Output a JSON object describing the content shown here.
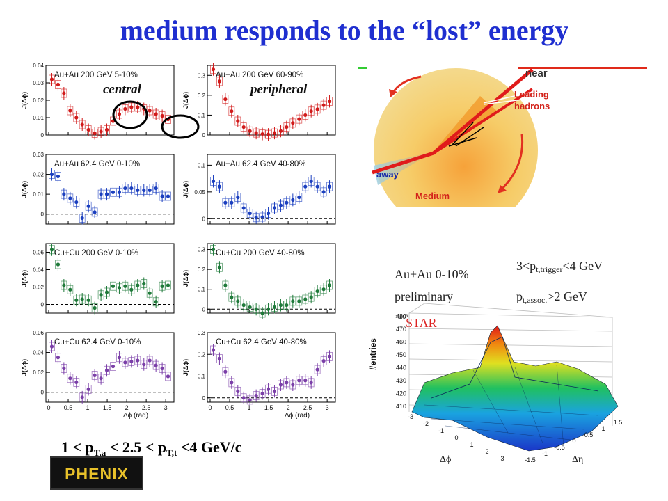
{
  "title": "medium responds to the “lost” energy",
  "central_label": "central",
  "peripheral_label": "peripheral",
  "axis": {
    "ylabel": "J(Δϕ)",
    "xlabel": "Δϕ (rad)",
    "xticks": [
      "0",
      "0.5",
      "1",
      "1.5",
      "2",
      "2.5",
      "3"
    ]
  },
  "chart_data": [
    {
      "type": "scatter",
      "title": "Au+Au 200 GeV 5-10%",
      "color": "#d11a1a",
      "ylim": [
        0,
        0.04
      ],
      "yticks": [
        "0",
        "0.01",
        "0.02",
        "0.03",
        "0.04"
      ],
      "x": [
        0.08,
        0.24,
        0.39,
        0.55,
        0.71,
        0.86,
        1.02,
        1.18,
        1.34,
        1.49,
        1.65,
        1.81,
        1.96,
        2.12,
        2.28,
        2.44,
        2.59,
        2.75,
        2.91,
        3.06
      ],
      "y": [
        0.032,
        0.029,
        0.024,
        0.014,
        0.01,
        0.006,
        0.003,
        0.001,
        0.002,
        0.003,
        0.008,
        0.012,
        0.015,
        0.016,
        0.016,
        0.015,
        0.014,
        0.012,
        0.011,
        0.009
      ]
    },
    {
      "type": "scatter",
      "title": "Au+Au 200 GeV 60-90%",
      "color": "#d11a1a",
      "ylim": [
        0,
        0.35
      ],
      "yticks": [
        "0",
        "0.1",
        "0.2",
        "0.3"
      ],
      "x": [
        0.08,
        0.24,
        0.39,
        0.55,
        0.71,
        0.86,
        1.02,
        1.18,
        1.34,
        1.49,
        1.65,
        1.81,
        1.96,
        2.12,
        2.28,
        2.44,
        2.59,
        2.75,
        2.91,
        3.06
      ],
      "y": [
        0.33,
        0.27,
        0.18,
        0.12,
        0.07,
        0.04,
        0.02,
        0.01,
        0.005,
        0.003,
        0.01,
        0.02,
        0.04,
        0.06,
        0.08,
        0.1,
        0.12,
        0.13,
        0.15,
        0.17
      ]
    },
    {
      "type": "scatter",
      "title": "Au+Au 62.4 GeV 0-10%",
      "color": "#1b3fbf",
      "ylim": [
        -0.005,
        0.03
      ],
      "yticks": [
        "0",
        "0.01",
        "0.02",
        "0.03"
      ],
      "x": [
        0.08,
        0.24,
        0.39,
        0.55,
        0.71,
        0.86,
        1.02,
        1.18,
        1.34,
        1.49,
        1.65,
        1.81,
        1.96,
        2.12,
        2.28,
        2.44,
        2.59,
        2.75,
        2.91,
        3.06
      ],
      "y": [
        0.02,
        0.019,
        0.01,
        0.008,
        0.006,
        -0.002,
        0.004,
        0.001,
        0.01,
        0.01,
        0.011,
        0.011,
        0.013,
        0.013,
        0.012,
        0.012,
        0.012,
        0.013,
        0.009,
        0.009
      ]
    },
    {
      "type": "scatter",
      "title": "Au+Au 62.4 GeV 40-80%",
      "color": "#1b3fbf",
      "ylim": [
        -0.01,
        0.12
      ],
      "yticks": [
        "0",
        "0.05",
        "0.1"
      ],
      "x": [
        0.08,
        0.24,
        0.39,
        0.55,
        0.71,
        0.86,
        1.02,
        1.18,
        1.34,
        1.49,
        1.65,
        1.81,
        1.96,
        2.12,
        2.28,
        2.44,
        2.59,
        2.75,
        2.91,
        3.06
      ],
      "y": [
        0.07,
        0.06,
        0.03,
        0.03,
        0.04,
        0.02,
        0.01,
        0.002,
        0.003,
        0.01,
        0.02,
        0.025,
        0.03,
        0.035,
        0.04,
        0.06,
        0.07,
        0.06,
        0.05,
        0.06
      ]
    },
    {
      "type": "scatter",
      "title": "Cu+Cu 200 GeV 0-10%",
      "color": "#1f7a3a",
      "ylim": [
        -0.01,
        0.07
      ],
      "yticks": [
        "0",
        "0.02",
        "0.04",
        "0.06"
      ],
      "x": [
        0.08,
        0.24,
        0.39,
        0.55,
        0.71,
        0.86,
        1.02,
        1.18,
        1.34,
        1.49,
        1.65,
        1.81,
        1.96,
        2.12,
        2.28,
        2.44,
        2.59,
        2.75,
        2.91,
        3.06
      ],
      "y": [
        0.063,
        0.046,
        0.022,
        0.017,
        0.005,
        0.006,
        0.005,
        -0.004,
        0.011,
        0.014,
        0.021,
        0.019,
        0.021,
        0.017,
        0.022,
        0.024,
        0.013,
        0.003,
        0.021,
        0.022
      ]
    },
    {
      "type": "scatter",
      "title": "Cu+Cu 200 GeV 40-80%",
      "color": "#1f7a3a",
      "ylim": [
        -0.02,
        0.33
      ],
      "yticks": [
        "0",
        "0.1",
        "0.2",
        "0.3"
      ],
      "x": [
        0.08,
        0.24,
        0.39,
        0.55,
        0.71,
        0.86,
        1.02,
        1.18,
        1.34,
        1.49,
        1.65,
        1.81,
        1.96,
        2.12,
        2.28,
        2.44,
        2.59,
        2.75,
        2.91,
        3.06
      ],
      "y": [
        0.3,
        0.21,
        0.12,
        0.06,
        0.04,
        0.02,
        0.01,
        0.0,
        -0.02,
        0.0,
        0.01,
        0.02,
        0.02,
        0.04,
        0.04,
        0.05,
        0.06,
        0.09,
        0.1,
        0.12
      ]
    },
    {
      "type": "scatter",
      "title": "Cu+Cu 62.4 GeV 0-10%",
      "color": "#7b3fa8",
      "ylim": [
        -0.01,
        0.06
      ],
      "yticks": [
        "0",
        "0.02",
        "0.04",
        "0.06"
      ],
      "x": [
        0.08,
        0.24,
        0.39,
        0.55,
        0.71,
        0.86,
        1.02,
        1.18,
        1.34,
        1.49,
        1.65,
        1.81,
        1.96,
        2.12,
        2.28,
        2.44,
        2.59,
        2.75,
        2.91,
        3.06
      ],
      "y": [
        0.046,
        0.035,
        0.024,
        0.014,
        0.01,
        -0.005,
        0.003,
        0.017,
        0.014,
        0.022,
        0.026,
        0.035,
        0.03,
        0.031,
        0.032,
        0.028,
        0.032,
        0.027,
        0.024,
        0.016
      ]
    },
    {
      "type": "scatter",
      "title": "Cu+Cu 62.4 GeV 40-80%",
      "color": "#7b3fa8",
      "ylim": [
        -0.02,
        0.3
      ],
      "yticks": [
        "0",
        "0.1",
        "0.2",
        "0.3"
      ],
      "x": [
        0.08,
        0.24,
        0.39,
        0.55,
        0.71,
        0.86,
        1.02,
        1.18,
        1.34,
        1.49,
        1.65,
        1.81,
        1.96,
        2.12,
        2.28,
        2.44,
        2.59,
        2.75,
        2.91,
        3.06
      ],
      "y": [
        0.22,
        0.18,
        0.12,
        0.07,
        0.03,
        0.0,
        -0.01,
        0.01,
        0.02,
        0.04,
        0.03,
        0.06,
        0.07,
        0.06,
        0.08,
        0.08,
        0.07,
        0.13,
        0.17,
        0.19
      ]
    }
  ],
  "schematic": {
    "near": "near",
    "leading": "Leading",
    "hadrons": "hadrons",
    "away": "away",
    "medium": "Medium"
  },
  "lego": {
    "info_system": "Au+Au 0-10%",
    "info_prelim": "preliminary",
    "info_star": "STAR",
    "cut1_pre": "3<p",
    "cut1_sub": "t,trigger",
    "cut1_post": "<4 GeV",
    "cut2_pre": "p",
    "cut2_sub": "t,assoc.",
    "cut2_post": ">2 GeV",
    "zlabel": "#entries",
    "zexp": "×10³",
    "zticks": [
      "410",
      "420",
      "430",
      "440",
      "450",
      "460",
      "470",
      "480"
    ],
    "phi_label": "Δϕ",
    "phi_ticks": [
      "-3",
      "-2",
      "-1",
      "0",
      "1",
      "2",
      "3"
    ],
    "eta_label": "Δη",
    "eta_ticks": [
      "-1.5",
      "-1",
      "-0.5",
      "0",
      "0.5",
      "1",
      "1.5"
    ]
  },
  "bottom_label": {
    "p1": "1 < p",
    "s1": "T,a",
    "p2": " < 2.5 < p",
    "s2": "T,t",
    "p3": " <4 GeV/c"
  },
  "logo_text": "PHENIX"
}
